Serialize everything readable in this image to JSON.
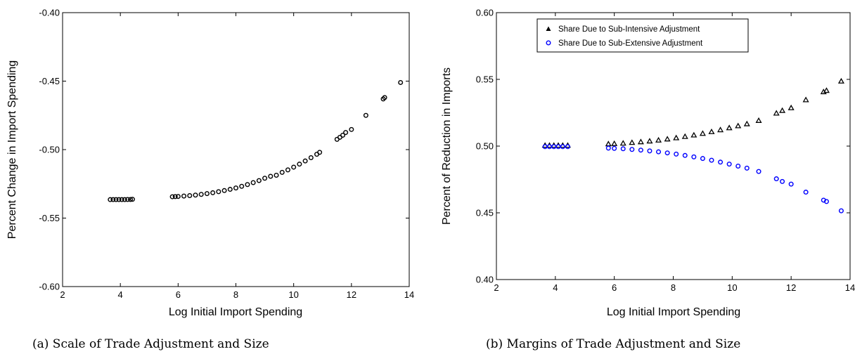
{
  "chart_data": [
    {
      "type": "scatter",
      "caption": "(a) Scale of Trade Adjustment and Size",
      "xlabel": "Log Initial Import Spending",
      "ylabel": "Percent Change in Import Spending",
      "xlim": [
        2,
        14
      ],
      "ylim": [
        -0.6,
        -0.4
      ],
      "xticks": [
        2,
        4,
        6,
        8,
        10,
        12,
        14
      ],
      "yticks": [
        -0.6,
        -0.55,
        -0.5,
        -0.45,
        -0.4
      ],
      "xtick_labels": [
        "2",
        "4",
        "6",
        "8",
        "10",
        "12",
        "14"
      ],
      "ytick_labels": [
        "-0.60",
        "-0.55",
        "-0.50",
        "-0.45",
        "-0.40"
      ],
      "grid": false,
      "series": [
        {
          "marker": "circle",
          "color": "#000000",
          "points": [
            [
              3.65,
              -0.5365
            ],
            [
              3.75,
              -0.5365
            ],
            [
              3.85,
              -0.5365
            ],
            [
              3.95,
              -0.5365
            ],
            [
              4.05,
              -0.5365
            ],
            [
              4.15,
              -0.5365
            ],
            [
              4.25,
              -0.5364
            ],
            [
              4.35,
              -0.5364
            ],
            [
              4.42,
              -0.5363
            ],
            [
              5.8,
              -0.5344
            ],
            [
              5.9,
              -0.5343
            ],
            [
              6.0,
              -0.5342
            ],
            [
              6.2,
              -0.5339
            ],
            [
              6.4,
              -0.5336
            ],
            [
              6.6,
              -0.5332
            ],
            [
              6.8,
              -0.5327
            ],
            [
              7.0,
              -0.5321
            ],
            [
              7.2,
              -0.5315
            ],
            [
              7.4,
              -0.5307
            ],
            [
              7.6,
              -0.5299
            ],
            [
              7.8,
              -0.529
            ],
            [
              8.0,
              -0.528
            ],
            [
              8.2,
              -0.5268
            ],
            [
              8.4,
              -0.5255
            ],
            [
              8.6,
              -0.5241
            ],
            [
              8.8,
              -0.5226
            ],
            [
              9.0,
              -0.5209
            ],
            [
              9.2,
              -0.5195
            ],
            [
              9.4,
              -0.5187
            ],
            [
              9.6,
              -0.5166
            ],
            [
              9.8,
              -0.5148
            ],
            [
              10.0,
              -0.5128
            ],
            [
              10.2,
              -0.5106
            ],
            [
              10.4,
              -0.5083
            ],
            [
              10.6,
              -0.5059
            ],
            [
              10.8,
              -0.5034
            ],
            [
              10.9,
              -0.502
            ],
            [
              11.5,
              -0.4925
            ],
            [
              11.6,
              -0.491
            ],
            [
              11.7,
              -0.4895
            ],
            [
              11.8,
              -0.4875
            ],
            [
              12.0,
              -0.4853
            ],
            [
              12.5,
              -0.475
            ],
            [
              13.1,
              -0.463
            ],
            [
              13.15,
              -0.462
            ],
            [
              13.7,
              -0.451
            ]
          ]
        }
      ]
    },
    {
      "type": "scatter",
      "caption": "(b) Margins of Trade Adjustment and Size",
      "xlabel": "Log Initial Import Spending",
      "ylabel": "Percent of Reduction in Imports",
      "xlim": [
        2,
        14
      ],
      "ylim": [
        0.4,
        0.6
      ],
      "xticks": [
        2,
        4,
        6,
        8,
        10,
        12,
        14
      ],
      "yticks": [
        0.4,
        0.45,
        0.5,
        0.55,
        0.6
      ],
      "xtick_labels": [
        "2",
        "4",
        "6",
        "8",
        "10",
        "12",
        "14"
      ],
      "ytick_labels": [
        "0.40",
        "0.45",
        "0.50",
        "0.55",
        "0.60"
      ],
      "grid": false,
      "legend_position": "top-left",
      "series": [
        {
          "name": "Share Due to Sub-Intensive Adjustment",
          "marker": "triangle",
          "color": "#000000",
          "points": [
            [
              3.65,
              0.5004
            ],
            [
              3.8,
              0.5004
            ],
            [
              3.95,
              0.5004
            ],
            [
              4.1,
              0.5004
            ],
            [
              4.25,
              0.5004
            ],
            [
              4.42,
              0.5004
            ],
            [
              5.8,
              0.5015
            ],
            [
              6.0,
              0.5017
            ],
            [
              6.3,
              0.502
            ],
            [
              6.6,
              0.5025
            ],
            [
              6.9,
              0.503
            ],
            [
              7.2,
              0.5036
            ],
            [
              7.5,
              0.5043
            ],
            [
              7.8,
              0.5051
            ],
            [
              8.1,
              0.506
            ],
            [
              8.4,
              0.507
            ],
            [
              8.7,
              0.5081
            ],
            [
              9.0,
              0.5093
            ],
            [
              9.3,
              0.5106
            ],
            [
              9.6,
              0.512
            ],
            [
              9.9,
              0.5135
            ],
            [
              10.2,
              0.515
            ],
            [
              10.5,
              0.5165
            ],
            [
              10.9,
              0.519
            ],
            [
              11.5,
              0.5245
            ],
            [
              11.7,
              0.5265
            ],
            [
              12.0,
              0.5285
            ],
            [
              12.5,
              0.5345
            ],
            [
              13.1,
              0.5405
            ],
            [
              13.2,
              0.5415
            ],
            [
              13.7,
              0.5485
            ]
          ]
        },
        {
          "name": "Share Due to Sub-Extensive Adjustment",
          "marker": "circle",
          "color": "#0000ff",
          "points": [
            [
              3.65,
              0.4996
            ],
            [
              3.8,
              0.4996
            ],
            [
              3.95,
              0.4996
            ],
            [
              4.1,
              0.4996
            ],
            [
              4.25,
              0.4996
            ],
            [
              4.42,
              0.4996
            ],
            [
              5.8,
              0.4985
            ],
            [
              6.0,
              0.4983
            ],
            [
              6.3,
              0.498
            ],
            [
              6.6,
              0.4975
            ],
            [
              6.9,
              0.497
            ],
            [
              7.2,
              0.4964
            ],
            [
              7.5,
              0.4957
            ],
            [
              7.8,
              0.4949
            ],
            [
              8.1,
              0.494
            ],
            [
              8.4,
              0.493
            ],
            [
              8.7,
              0.4919
            ],
            [
              9.0,
              0.4907
            ],
            [
              9.3,
              0.4894
            ],
            [
              9.6,
              0.488
            ],
            [
              9.9,
              0.4865
            ],
            [
              10.2,
              0.485
            ],
            [
              10.5,
              0.4835
            ],
            [
              10.9,
              0.481
            ],
            [
              11.5,
              0.4755
            ],
            [
              11.7,
              0.4735
            ],
            [
              12.0,
              0.4715
            ],
            [
              12.5,
              0.4655
            ],
            [
              13.1,
              0.4595
            ],
            [
              13.2,
              0.4585
            ],
            [
              13.7,
              0.4515
            ]
          ]
        }
      ]
    }
  ]
}
